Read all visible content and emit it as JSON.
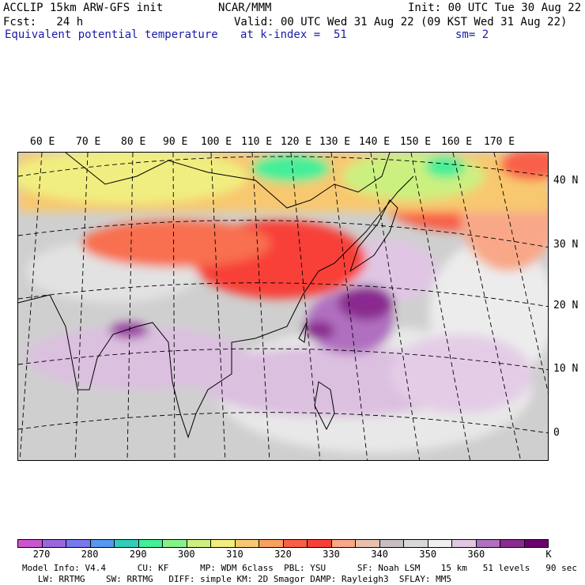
{
  "header": {
    "left_line1": "ACCLIP 15km ARW-GFS init",
    "left_line2": "Fcst:   24 h",
    "left_line3": "Equivalent potential temperature",
    "center_line1": "NCAR/MMM",
    "center_line2": "Valid: 00 UTC Wed 31 Aug 22 (09 KST Wed 31 Aug 22)",
    "center_line3": "at k-index =  51",
    "right_line1": "Init: 00 UTC Tue 30 Aug 22",
    "right_line3": "sm= 2"
  },
  "map": {
    "longitude_labels": [
      "60 E",
      "70 E",
      "80 E",
      "90 E",
      "100 E",
      "110 E",
      "120 E",
      "130 E",
      "140 E",
      "150 E",
      "160 E",
      "170 E"
    ],
    "latitude_labels": [
      "40 N",
      "30 N",
      "20 N",
      "10 N",
      "0"
    ]
  },
  "colorbar": {
    "colors": [
      "#cc55cc",
      "#9966dd",
      "#7777ee",
      "#5599ee",
      "#33ccbb",
      "#44ee99",
      "#88f088",
      "#ccf080",
      "#f0ee80",
      "#f8c870",
      "#f8a060",
      "#f86048",
      "#f84038",
      "#f8a888",
      "#e8c0b0",
      "#c8c0c0",
      "#d8d8d8",
      "#f0f0f0",
      "#e0c8e0",
      "#b070c0",
      "#8a2a90",
      "#6a0070"
    ],
    "labels": [
      "270",
      "280",
      "290",
      "300",
      "310",
      "320",
      "330",
      "340",
      "350",
      "360"
    ],
    "unit": "K"
  },
  "footer": {
    "line1": "Model Info: V4.4      CU: KF      MP: WDM 6class  PBL: YSU      SF: Noah LSM    15 km   51 levels   90 sec",
    "line2": "   LW: RRTMG    SW: RRTMG   DIFF: simple KM: 2D Smagor DAMP: Rayleigh3  SFLAY: MM5"
  }
}
